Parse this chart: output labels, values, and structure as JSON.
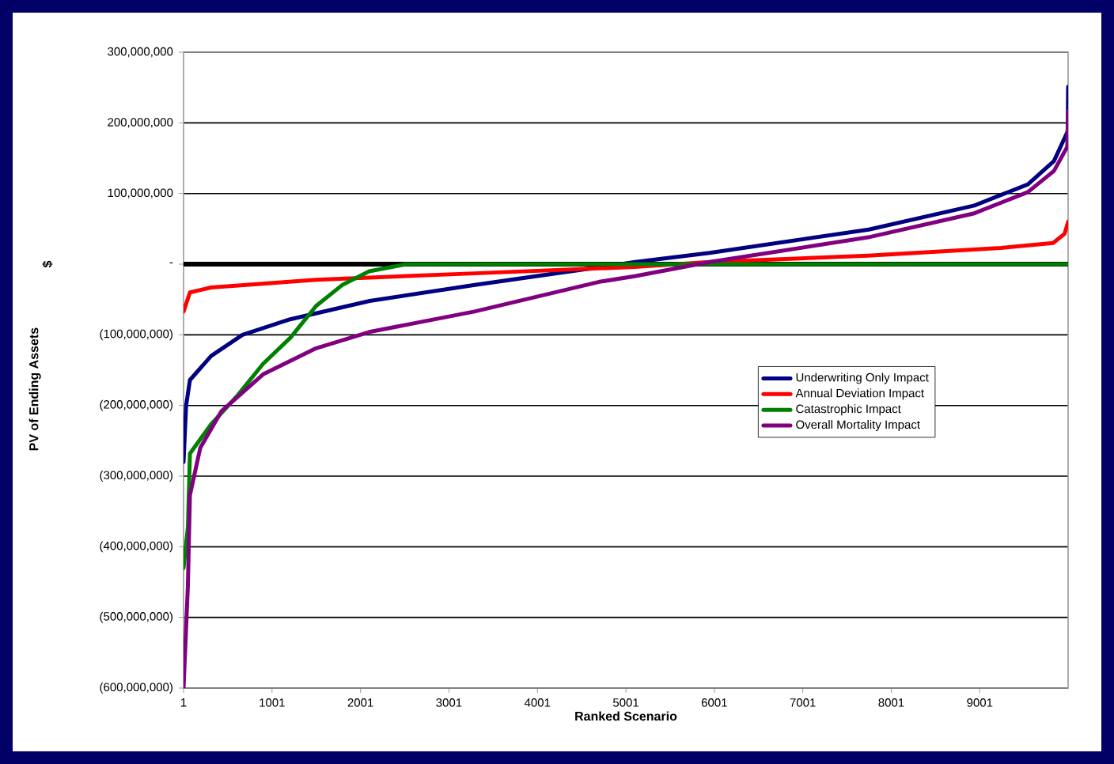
{
  "chart_data": {
    "type": "line",
    "xlabel": "Ranked Scenario",
    "ylabel": "PV of Ending Assets",
    "annotations": [
      "$"
    ],
    "xlim": [
      1,
      10000
    ],
    "ylim": [
      -600000000,
      300000000
    ],
    "xticks": [
      1,
      1001,
      2001,
      3001,
      4001,
      5001,
      6001,
      7001,
      8001,
      9001
    ],
    "yticks": [
      {
        "value": -600000000,
        "label": "(600,000,000)"
      },
      {
        "value": -500000000,
        "label": "(500,000,000)"
      },
      {
        "value": -400000000,
        "label": "(400,000,000)"
      },
      {
        "value": -300000000,
        "label": "(300,000,000)"
      },
      {
        "value": -200000000,
        "label": "(200,000,000)"
      },
      {
        "value": -100000000,
        "label": "(100,000,000)"
      },
      {
        "value": 0,
        "label": "-"
      },
      {
        "value": 100000000,
        "label": "100,000,000"
      },
      {
        "value": 200000000,
        "label": "200,000,000"
      },
      {
        "value": 300000000,
        "label": "300,000,000"
      }
    ],
    "grid": "y",
    "legend": "right",
    "marker": "none",
    "line_style": "solid",
    "ref_lines": [
      {
        "axis": "y",
        "value": 0,
        "color": "#000000"
      }
    ],
    "series": [
      {
        "name": "Underwriting Only Impact",
        "color": "#000080",
        "x": [
          1,
          30,
          73,
          312,
          667,
          1206,
          2105,
          3310,
          5108,
          5948,
          7747,
          8940,
          9545,
          9840,
          9995,
          10000
        ],
        "values": [
          -280000000,
          -200000000,
          -164000000,
          -130000000,
          -100000000,
          -78000000,
          -52000000,
          -29000000,
          3000000,
          16000000,
          49000000,
          83000000,
          113000000,
          146000000,
          188000000,
          251000000
        ]
      },
      {
        "name": "Annual Deviation Impact",
        "color": "#ff0000",
        "x": [
          1,
          73,
          312,
          1500,
          3290,
          5100,
          5950,
          7740,
          9240,
          9830,
          9960,
          10000
        ],
        "values": [
          -67000000,
          -40000000,
          -33000000,
          -22000000,
          -13000000,
          -4000000,
          3000000,
          12000000,
          23000000,
          30000000,
          43000000,
          60000000
        ]
      },
      {
        "name": "Catastrophic Impact",
        "color": "#008000",
        "x": [
          1,
          50,
          73,
          310,
          610,
          900,
          1210,
          1500,
          1800,
          2100,
          2520,
          10000
        ],
        "values": [
          -430000000,
          -372000000,
          -268000000,
          -227000000,
          -186000000,
          -141000000,
          -104000000,
          -59000000,
          -29000000,
          -10000000,
          0,
          0
        ]
      },
      {
        "name": "Overall Mortality Impact",
        "color": "#800080",
        "x": [
          1,
          50,
          73,
          190,
          430,
          900,
          1500,
          2100,
          3290,
          4700,
          5100,
          5950,
          7740,
          8940,
          9545,
          9840,
          9990,
          10000
        ],
        "values": [
          -600000000,
          -455000000,
          -327000000,
          -260000000,
          -208000000,
          -156000000,
          -119000000,
          -96000000,
          -67000000,
          -25000000,
          -17000000,
          3000000,
          38000000,
          72000000,
          102000000,
          132000000,
          166000000,
          217000000
        ]
      }
    ]
  }
}
